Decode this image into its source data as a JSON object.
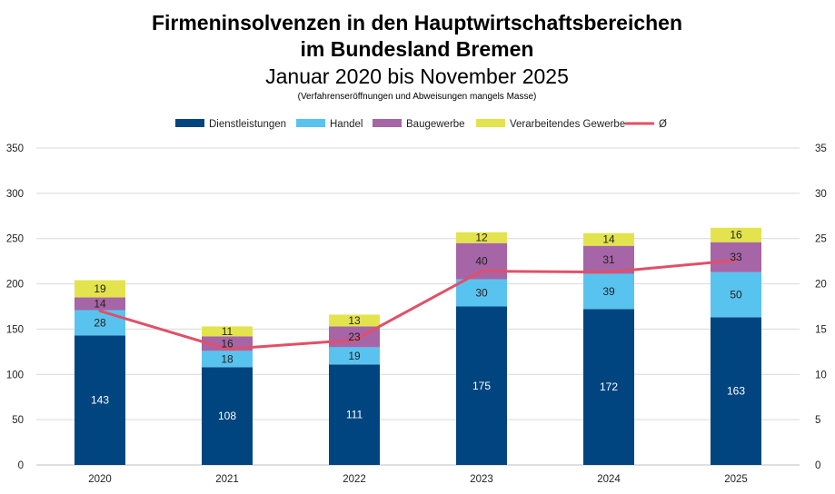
{
  "chart_data": {
    "type": "bar",
    "stacked": true,
    "title_line1": "Firmeninsolvenzen in den Hauptwirtschaftsbereichen",
    "title_line2": "im Bundesland Bremen",
    "subtitle": "Januar 2020 bis November 2025",
    "note": "(Verfahrenseröffnungen und Abweisungen mangels Masse)",
    "categories": [
      "2020",
      "2021",
      "2022",
      "2023",
      "2024",
      "2025"
    ],
    "series": [
      {
        "name": "Dienstleistungen",
        "color": "#00457f",
        "label_color": "#ffffff",
        "values": [
          143,
          108,
          111,
          175,
          172,
          163
        ]
      },
      {
        "name": "Handel",
        "color": "#59c3f0",
        "label_color": "#222222",
        "values": [
          28,
          18,
          19,
          30,
          39,
          50
        ]
      },
      {
        "name": "Baugewerbe",
        "color": "#a665a6",
        "label_color": "#222222",
        "values": [
          14,
          16,
          23,
          40,
          31,
          33
        ]
      },
      {
        "name": "Verarbeitendes Gewerbe",
        "color": "#e3e44d",
        "label_color": "#222222",
        "values": [
          19,
          11,
          13,
          12,
          14,
          16
        ]
      }
    ],
    "line": {
      "name": "Ø",
      "color": "#e05068",
      "values": [
        17.0,
        12.8,
        13.8,
        21.4,
        21.3,
        22.6
      ]
    },
    "y_left": {
      "min": 0,
      "max": 350,
      "step": 50,
      "ticks": [
        "0",
        "50",
        "100",
        "150",
        "200",
        "250",
        "300",
        "350"
      ]
    },
    "y_right": {
      "min": 0,
      "max": 35,
      "step": 5,
      "ticks": [
        "0",
        "5",
        "10",
        "15",
        "20",
        "25",
        "30",
        "35"
      ]
    },
    "grid": true,
    "legend_position": "top"
  }
}
